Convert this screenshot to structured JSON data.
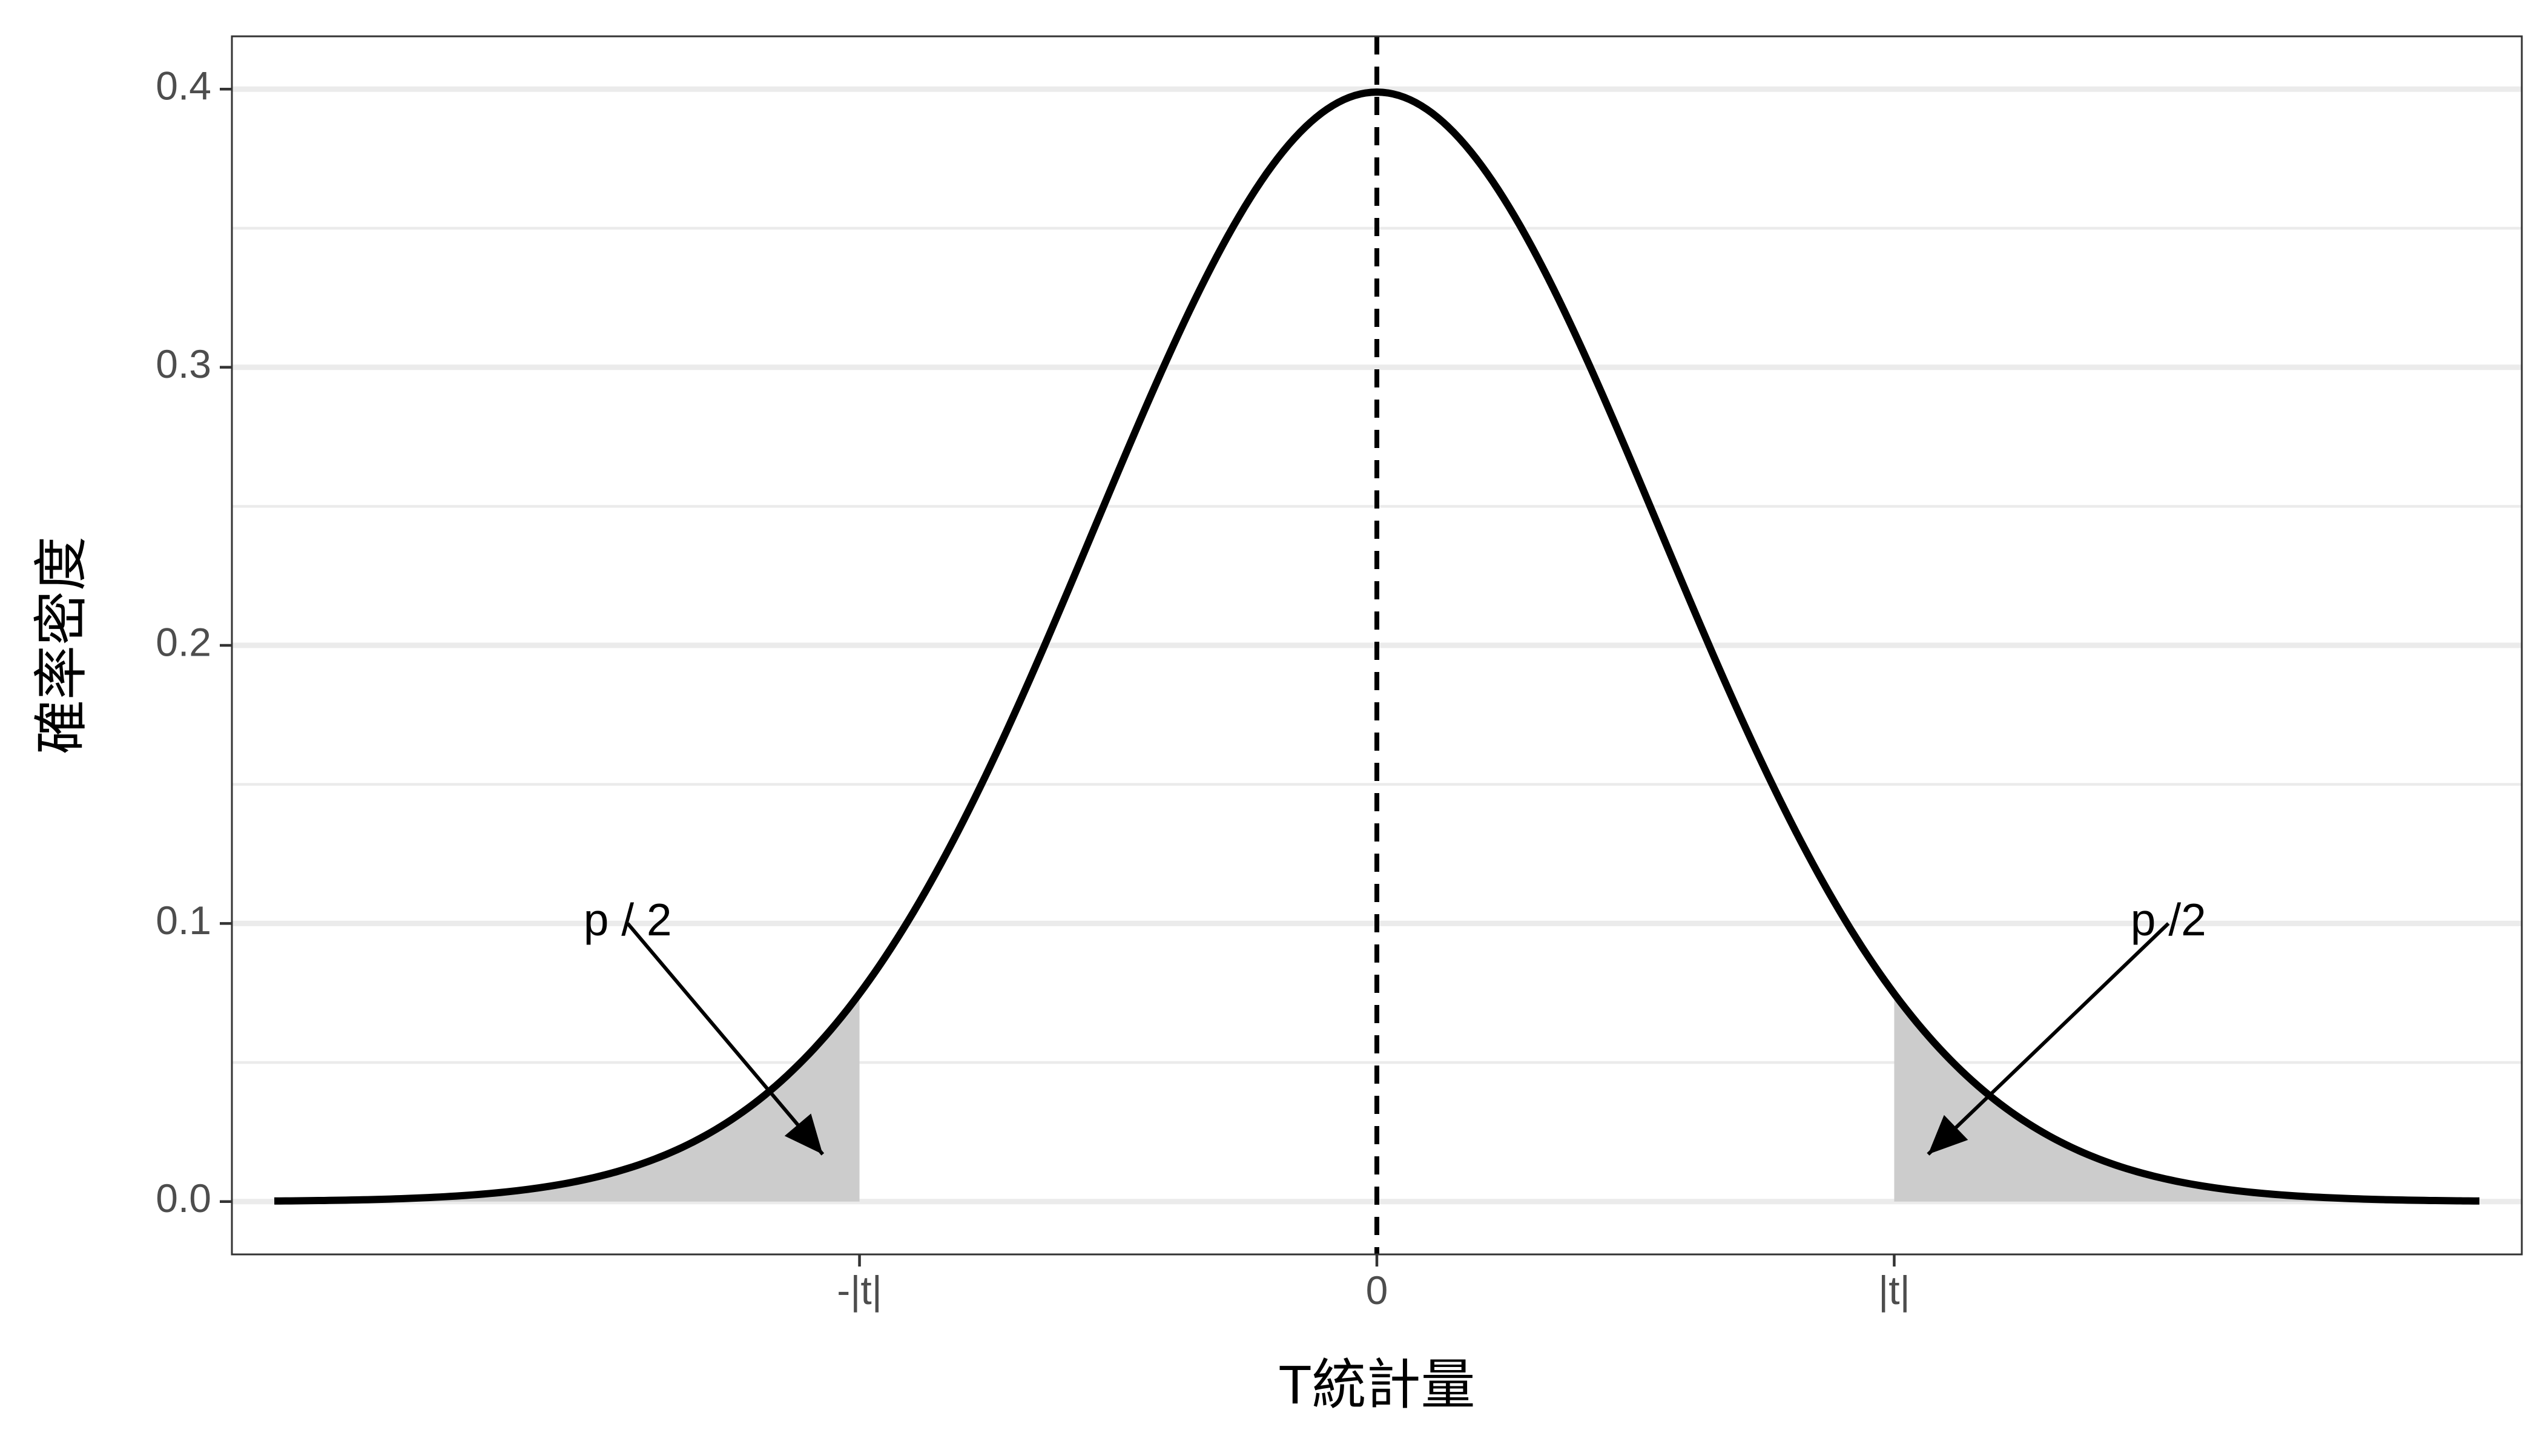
{
  "chart_data": {
    "type": "line",
    "title": "",
    "xlabel": "T統計量",
    "ylabel": "確率密度",
    "distribution": "standard normal density",
    "x_range": [
      -3.9,
      3.9
    ],
    "ylim": [
      -0.019,
      0.419
    ],
    "x_ticks": [
      {
        "value": -1.83,
        "label": "-|t|"
      },
      {
        "value": 0,
        "label": "0"
      },
      {
        "value": 1.83,
        "label": "|t|"
      }
    ],
    "y_ticks": [
      {
        "value": 0.0,
        "label": "0.0"
      },
      {
        "value": 0.1,
        "label": "0.1"
      },
      {
        "value": 0.2,
        "label": "0.2"
      },
      {
        "value": 0.3,
        "label": "0.3"
      },
      {
        "value": 0.4,
        "label": "0.4"
      }
    ],
    "t_value": 1.83,
    "series": [
      {
        "type": "line",
        "color": "#000000"
      }
    ],
    "shaded_regions": [
      {
        "x_from": -3.9,
        "x_to": -1.83,
        "color": "#cccccc"
      },
      {
        "x_from": 1.83,
        "x_to": 3.9,
        "color": "#cccccc"
      }
    ],
    "reference_line": {
      "x": 0,
      "style": "dashed",
      "color": "#000000"
    },
    "annotations": [
      {
        "text": "p / 2",
        "x": -2.65,
        "y": 0.1,
        "arrow_to": [
          -1.96,
          0.017
        ]
      },
      {
        "text": "p /2",
        "x": 2.8,
        "y": 0.1,
        "arrow_to": [
          1.95,
          0.017
        ]
      }
    ],
    "grid": true,
    "theme": "bw"
  }
}
